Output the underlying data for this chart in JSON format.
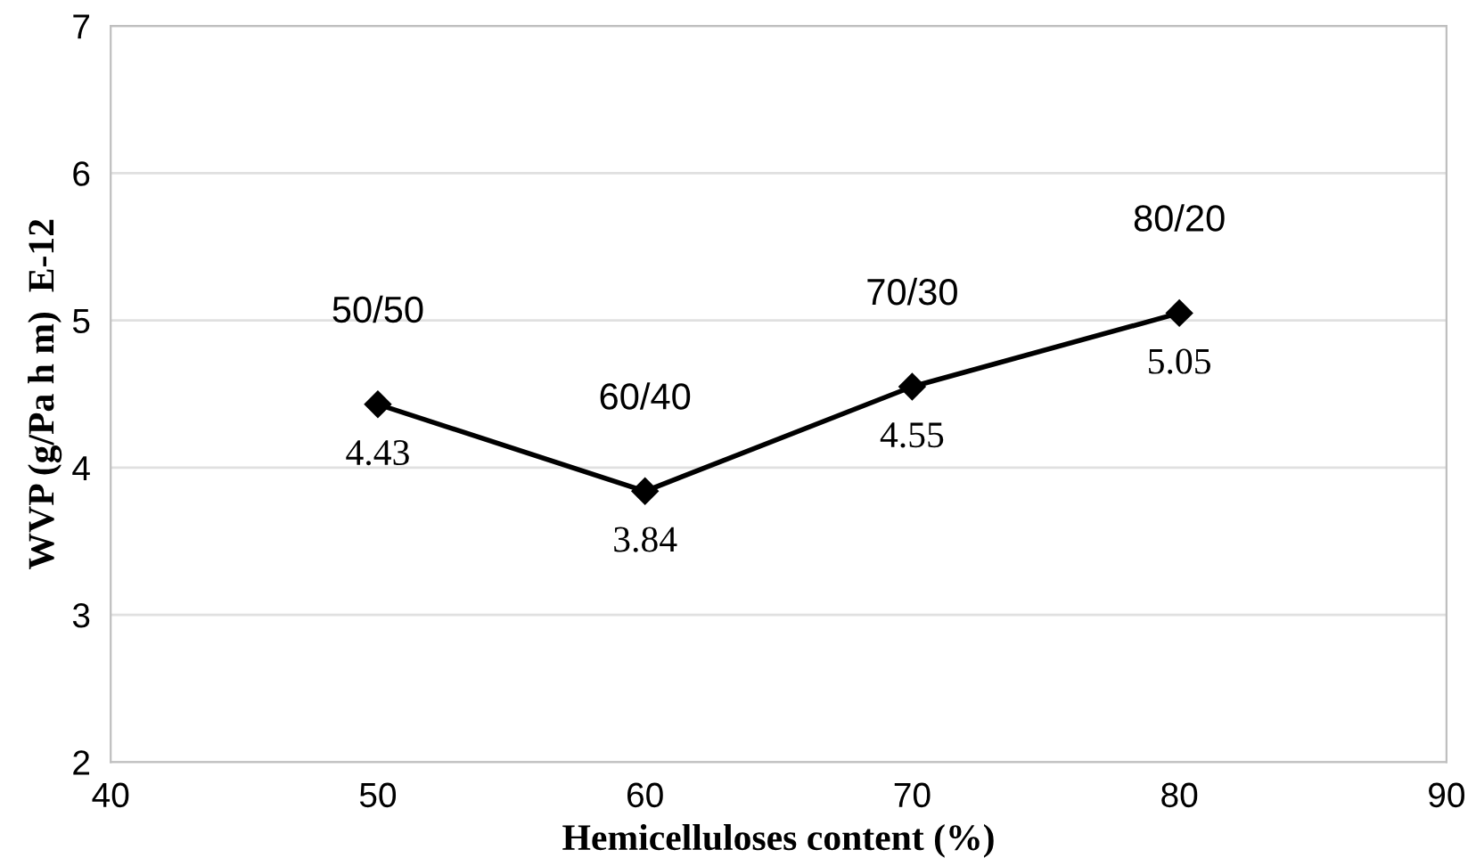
{
  "chart_data": {
    "type": "line",
    "xlabel": "Hemicelluloses content (%)",
    "ylabel": "WVP (g/Pa h m)  E-12",
    "x": [
      50,
      60,
      70,
      80
    ],
    "series": [
      {
        "color": "#000000",
        "values": [
          4.43,
          3.84,
          4.55,
          5.05
        ]
      }
    ],
    "marker": "diamond",
    "line_style": "solid",
    "data_labels": true,
    "grid": "y",
    "legend": false,
    "xlim": [
      40,
      90
    ],
    "xticks": [
      40,
      50,
      60,
      70,
      80,
      90
    ],
    "ylim": [
      2,
      7
    ],
    "yticks": [
      2,
      3,
      4,
      5,
      6,
      7
    ],
    "annotations": [
      {
        "text": "50/50",
        "x": 50,
        "y": 4.43
      },
      {
        "text": "60/40",
        "x": 60,
        "y": 3.84
      },
      {
        "text": "70/30",
        "x": 70,
        "y": 4.55
      },
      {
        "text": "80/20",
        "x": 80,
        "y": 5.05
      }
    ]
  }
}
